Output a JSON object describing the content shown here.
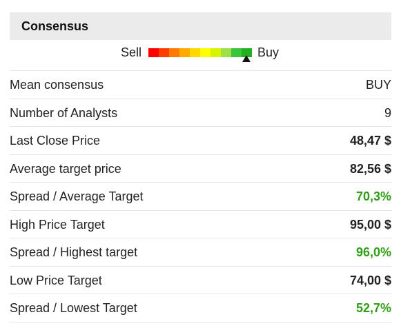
{
  "header": {
    "title": "Consensus"
  },
  "gauge": {
    "left_label": "Sell",
    "right_label": "Buy"
  },
  "table": {
    "rows": [
      [
        "Mean consensus",
        "BUY"
      ],
      [
        "Number of Analysts",
        "9"
      ],
      [
        "Last Close Price",
        "48,47 $"
      ],
      [
        "Average target price",
        "82,56 $"
      ],
      [
        "Spread / Average Target",
        "70,3%"
      ],
      [
        "High Price Target",
        "95,00 $"
      ],
      [
        "Spread / Highest target",
        "96,0%"
      ],
      [
        "Low Price Target",
        "74,00 $"
      ],
      [
        "Spread / Lowest Target",
        "52,7%"
      ]
    ]
  }
}
